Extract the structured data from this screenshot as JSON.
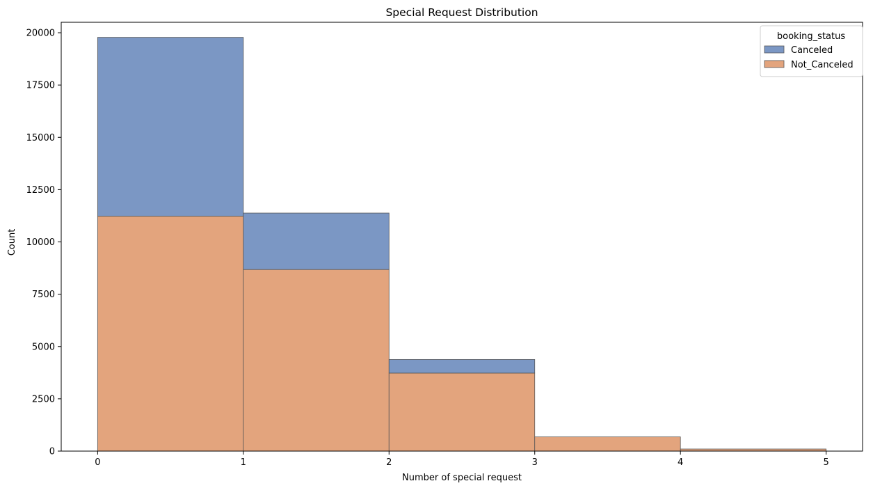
{
  "chart_data": {
    "type": "histogram",
    "stacked": true,
    "title": "Special Request Distribution",
    "xlabel": "Number of special request",
    "ylabel": "Count",
    "bin_edges": [
      0,
      1,
      2,
      3,
      4,
      5
    ],
    "x_ticks": [
      0,
      1,
      2,
      3,
      4,
      5
    ],
    "y_ticks": [
      0,
      2500,
      5000,
      7500,
      10000,
      12500,
      15000,
      17500,
      20000
    ],
    "xlim": [
      -0.25,
      5.25
    ],
    "ylim": [
      0,
      20500
    ],
    "grid": false,
    "legend": {
      "title": "booking_status",
      "placement": "top-right"
    },
    "series": [
      {
        "name": "Canceled",
        "color": "#7b97c4",
        "values": [
          8550,
          2700,
          650,
          0,
          0
        ]
      },
      {
        "name": "Not_Canceled",
        "color": "#e3a47d",
        "values": [
          11230,
          8680,
          3730,
          680,
          100
        ]
      }
    ]
  }
}
